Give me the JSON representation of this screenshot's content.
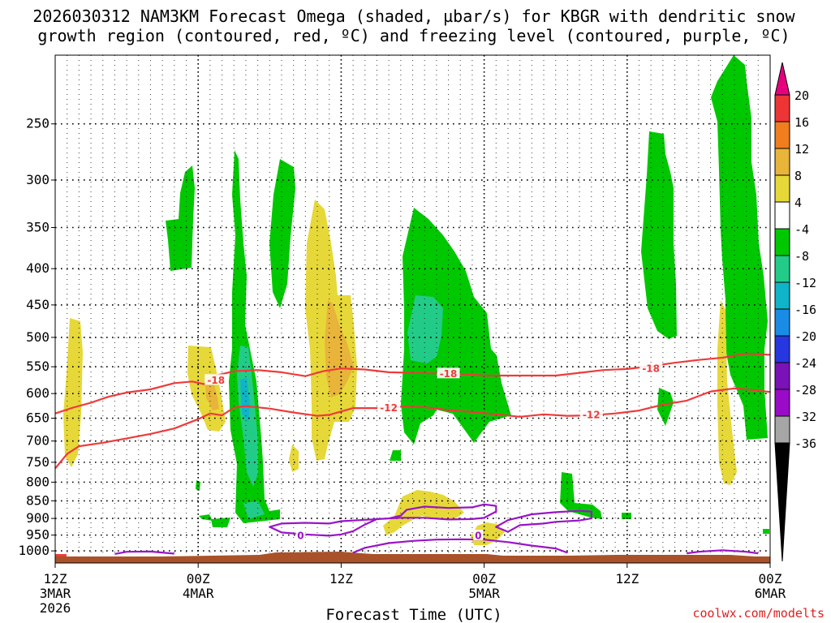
{
  "chart_data": {
    "type": "time-height cross section",
    "title_line1": "2026030312 NAM3KM Forecast Omega (shaded, µbar/s) for KBGR with dendritic snow",
    "title_line2": "growth region (contoured, red, ºC) and freezing level (contoured, purple, ºC)",
    "xlabel": "Forecast Time (UTC)",
    "credit": "coolwx.com/modelts",
    "x_ticks": [
      {
        "hours": 0,
        "lines": [
          "12Z",
          "3MAR",
          "2026"
        ]
      },
      {
        "hours": 12,
        "lines": [
          "00Z",
          "4MAR"
        ]
      },
      {
        "hours": 24,
        "lines": [
          "12Z"
        ]
      },
      {
        "hours": 36,
        "lines": [
          "00Z",
          "5MAR"
        ]
      },
      {
        "hours": 48,
        "lines": [
          "12Z"
        ]
      },
      {
        "hours": 60,
        "lines": [
          "00Z",
          "6MAR"
        ]
      }
    ],
    "x_range_hours": [
      0,
      60
    ],
    "y_ticks_hPa": [
      250,
      300,
      350,
      400,
      450,
      500,
      550,
      600,
      650,
      700,
      750,
      800,
      850,
      900,
      950,
      1000
    ],
    "y_range_hPa": [
      200,
      1040
    ],
    "colorbar": {
      "levels": [
        "20",
        "16",
        "12",
        "8",
        "4",
        "-4",
        "-8",
        "-12",
        "-16",
        "-20",
        "-24",
        "-28",
        "-32",
        "-36"
      ],
      "colors": [
        "#e6007e",
        "#ee3535",
        "#f07d1e",
        "#e8b43a",
        "#e6d838",
        "#ffffff",
        "#00c800",
        "#22cc88",
        "#0fb4c8",
        "#1a8ce6",
        "#2637e0",
        "#7a12b8",
        "#9a0bc8",
        "#a6a6a6",
        "#000000"
      ]
    },
    "contours": [
      {
        "name": "dgz_minus18",
        "label": "-18",
        "color": "#ee3b3b",
        "points": [
          [
            0,
            640
          ],
          [
            1.5,
            628
          ],
          [
            3,
            618
          ],
          [
            4.5,
            606
          ],
          [
            6,
            598
          ],
          [
            8,
            592
          ],
          [
            10,
            580
          ],
          [
            11.5,
            577
          ],
          [
            12.5,
            582
          ],
          [
            13.5,
            566
          ],
          [
            15,
            558
          ],
          [
            17,
            556
          ],
          [
            19,
            560
          ],
          [
            21,
            567
          ],
          [
            22.5,
            558
          ],
          [
            24,
            553
          ],
          [
            26,
            555
          ],
          [
            28,
            560
          ],
          [
            30,
            561
          ],
          [
            32,
            562
          ],
          [
            34,
            563
          ],
          [
            36,
            566
          ],
          [
            38,
            566
          ],
          [
            40,
            566
          ],
          [
            42,
            566
          ],
          [
            44,
            561
          ],
          [
            46,
            556
          ],
          [
            48,
            554
          ],
          [
            50,
            549
          ],
          [
            52,
            543
          ],
          [
            54,
            538
          ],
          [
            56,
            534
          ],
          [
            58,
            527
          ],
          [
            60,
            529
          ]
        ],
        "label_at": [
          [
            13.5,
            574
          ],
          [
            33,
            562
          ],
          [
            50,
            553
          ]
        ]
      },
      {
        "name": "dgz_minus12",
        "label": "-12",
        "color": "#ee3b3b",
        "points": [
          [
            0,
            765
          ],
          [
            1,
            730
          ],
          [
            2,
            712
          ],
          [
            4,
            704
          ],
          [
            6,
            694
          ],
          [
            8,
            684
          ],
          [
            10,
            672
          ],
          [
            12,
            652
          ],
          [
            13,
            640
          ],
          [
            14,
            644
          ],
          [
            15,
            628
          ],
          [
            16,
            625
          ],
          [
            18,
            630
          ],
          [
            20,
            638
          ],
          [
            22,
            645
          ],
          [
            23,
            643
          ],
          [
            25,
            629
          ],
          [
            27,
            629
          ],
          [
            29,
            626
          ],
          [
            31,
            627
          ],
          [
            33,
            633
          ],
          [
            35,
            637
          ],
          [
            37,
            642
          ],
          [
            39,
            647
          ],
          [
            41,
            642
          ],
          [
            43,
            645
          ],
          [
            45,
            644
          ],
          [
            47,
            640
          ],
          [
            49,
            634
          ],
          [
            51,
            622
          ],
          [
            53,
            614
          ],
          [
            55,
            596
          ],
          [
            57,
            590
          ],
          [
            58.5,
            593
          ],
          [
            60,
            597
          ]
        ],
        "label_at": [
          [
            28,
            628
          ],
          [
            45,
            642
          ]
        ]
      },
      {
        "name": "freezing_level",
        "label": "0",
        "color": "#9a14c8",
        "paths": [
          [
            [
              5,
              1010
            ],
            [
              6,
              1003
            ],
            [
              8,
              1002
            ],
            [
              10,
              1009
            ]
          ],
          [
            [
              23,
              915
            ],
            [
              24,
              908
            ],
            [
              26,
              904
            ],
            [
              28,
              900
            ],
            [
              29,
              892
            ],
            [
              29.5,
              875
            ],
            [
              31,
              866
            ],
            [
              33,
              870
            ],
            [
              35,
              868
            ],
            [
              36,
              860
            ],
            [
              37,
              864
            ],
            [
              37,
              880
            ],
            [
              36,
              898
            ],
            [
              35,
              902
            ],
            [
              33,
              903
            ],
            [
              31,
              898
            ],
            [
              29,
              898
            ],
            [
              27,
              902
            ],
            [
              26,
              918
            ],
            [
              25,
              938
            ],
            [
              24,
              948
            ],
            [
              23,
              952
            ],
            [
              21,
              948
            ],
            [
              19,
              942
            ],
            [
              18,
              925
            ],
            [
              19,
              915
            ],
            [
              21,
              913
            ],
            [
              23,
              915
            ]
          ],
          [
            [
              25,
              1006
            ],
            [
              26,
              990
            ],
            [
              28,
              975
            ],
            [
              30,
              968
            ],
            [
              32,
              964
            ],
            [
              34,
              963
            ],
            [
              36,
              964
            ],
            [
              38,
              972
            ],
            [
              40,
              983
            ],
            [
              42,
              992
            ],
            [
              43,
              1006
            ]
          ],
          [
            [
              38,
              940
            ],
            [
              37,
              925
            ],
            [
              38,
              905
            ],
            [
              40,
              888
            ],
            [
              42,
              882
            ],
            [
              44,
              878
            ],
            [
              45,
              880
            ],
            [
              45,
              900
            ],
            [
              44,
              906
            ],
            [
              42,
              910
            ],
            [
              41,
              915
            ],
            [
              39,
              920
            ],
            [
              38,
              940
            ]
          ],
          [
            [
              53,
              1008
            ],
            [
              54,
              1003
            ],
            [
              56,
              998
            ],
            [
              58,
              1003
            ],
            [
              59,
              1008
            ]
          ]
        ],
        "label_at": [
          [
            20.6,
            951
          ],
          [
            35.5,
            951
          ]
        ]
      }
    ]
  }
}
